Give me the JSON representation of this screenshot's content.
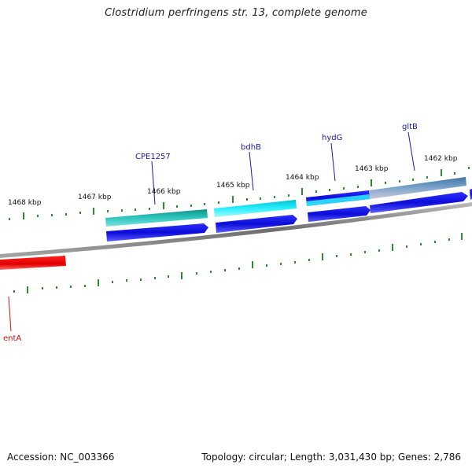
{
  "title": "Clostridium perfringens str. 13, complete genome",
  "footer": {
    "accession": "Accession: NC_003366",
    "summary": "Topology: circular; Length: 3,031,430 bp; Genes: 2,786"
  },
  "ticks": {
    "outer": [
      "1468 kbp",
      "1467 kbp",
      "1466 kbp",
      "1465 kbp",
      "1464 kbp",
      "1463 kbp",
      "1462 kbp"
    ]
  },
  "genes": {
    "cpe1257": "CPE1257",
    "bdhB": "bdhB",
    "hydG": "hydG",
    "gltB": "gltB",
    "entA": "entA"
  },
  "colors": {
    "tick": "#2e8b2e",
    "backbone": "#8a8a8a",
    "teal": "#20b2aa",
    "cyan": "#00e5ee",
    "blue": "#1010e0",
    "steel": "#5f8fb8",
    "red": "#ee0000",
    "label_blue": "#1a1aa8",
    "label_red": "#cc1111"
  }
}
